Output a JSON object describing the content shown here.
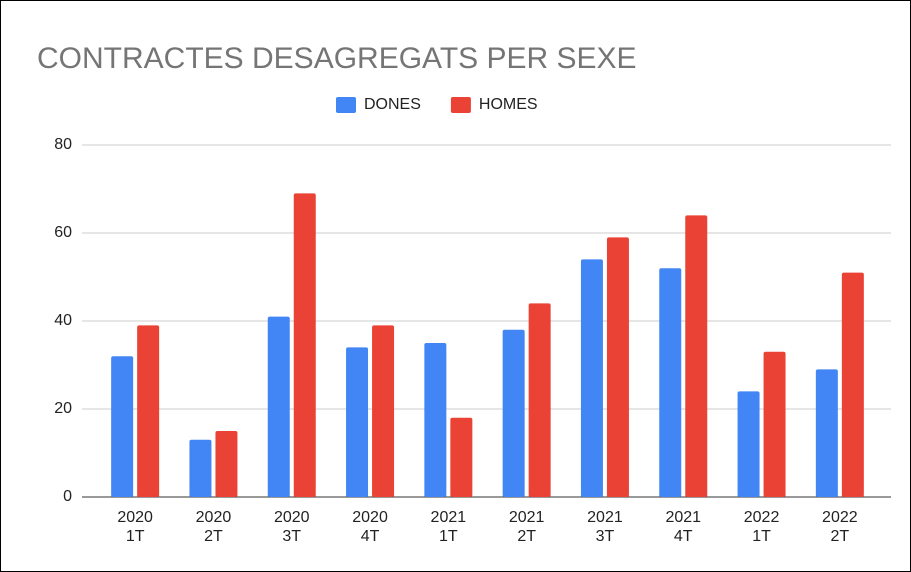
{
  "chart_data": {
    "type": "bar",
    "title": "CONTRACTES DESAGREGATS PER SEXE",
    "categories": [
      [
        "2020",
        "1T"
      ],
      [
        "2020",
        "2T"
      ],
      [
        "2020",
        "3T"
      ],
      [
        "2020",
        "4T"
      ],
      [
        "2021",
        "1T"
      ],
      [
        "2021",
        "2T"
      ],
      [
        "2021",
        "3T"
      ],
      [
        "2021",
        "4T"
      ],
      [
        "2022",
        "1T"
      ],
      [
        "2022",
        "2T"
      ]
    ],
    "series": [
      {
        "name": "DONES",
        "color": "#4285f4",
        "values": [
          32,
          13,
          41,
          34,
          35,
          38,
          54,
          52,
          24,
          29
        ]
      },
      {
        "name": "HOMES",
        "color": "#ea4335",
        "values": [
          39,
          15,
          69,
          39,
          18,
          44,
          59,
          64,
          33,
          51
        ]
      }
    ],
    "ylim": [
      0,
      80
    ],
    "yticks": [
      0,
      20,
      40,
      60,
      80
    ],
    "grid": true,
    "legend": "top"
  }
}
